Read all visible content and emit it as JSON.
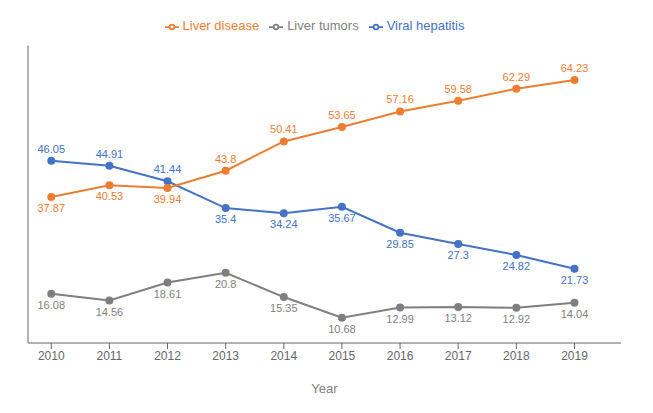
{
  "chart_data": {
    "type": "line",
    "xlabel": "Year",
    "x": [
      2010,
      2011,
      2012,
      2013,
      2014,
      2015,
      2016,
      2017,
      2018,
      2019
    ],
    "series": [
      {
        "name": "Viral hepatitis",
        "color": "#4472C4",
        "values": [
          46.05,
          44.91,
          41.44,
          35.4,
          34.24,
          35.67,
          29.85,
          27.3,
          24.82,
          21.73
        ],
        "marker": "circle",
        "line_style": "solid"
      },
      {
        "name": "Liver disease",
        "color": "#ED7D31",
        "values": [
          37.87,
          40.53,
          39.94,
          43.8,
          50.41,
          53.65,
          57.16,
          59.58,
          62.29,
          64.23
        ],
        "marker": "circle",
        "line_style": "solid"
      },
      {
        "name": "Liver tumors",
        "color": "#7F7F7F",
        "values": [
          16.08,
          14.56,
          18.61,
          20.8,
          15.35,
          10.68,
          12.99,
          13.12,
          12.92,
          14.04
        ],
        "marker": "circle",
        "line_style": "solid"
      }
    ],
    "xlim": [
      2009.6,
      2019.8
    ],
    "xticks": [
      2010,
      2011,
      2012,
      2013,
      2014,
      2015,
      2016,
      2017,
      2018,
      2019
    ],
    "ylim": [
      5,
      72
    ],
    "yticks": [],
    "grid": false,
    "legend": "top",
    "data_labels": true,
    "tick_labels": "x"
  }
}
